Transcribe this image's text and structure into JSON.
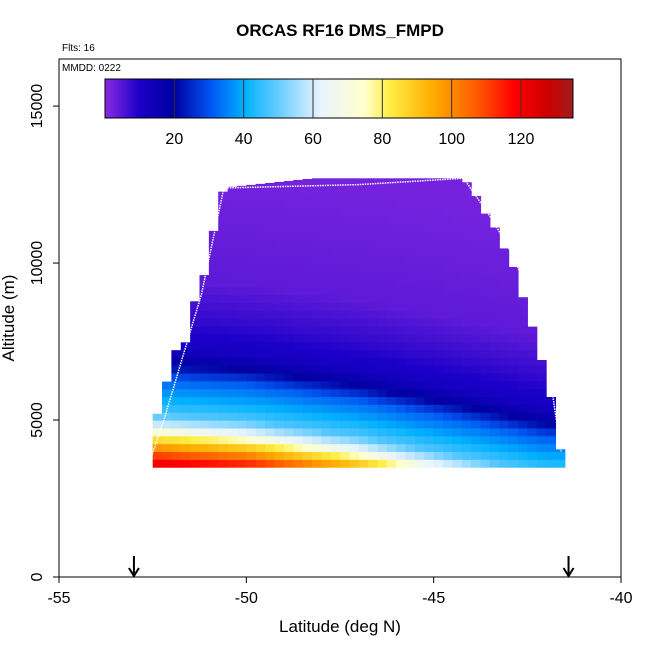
{
  "chart_data": {
    "type": "heatmap",
    "title": "ORCAS RF16 DMS_FMPD",
    "annotations": {
      "flights": "Flts: 16",
      "mmdd": "MMDD: 0222"
    },
    "xlabel": "Latitude (deg N)",
    "ylabel": "Altitude (m)",
    "xlim": [
      -55,
      -40
    ],
    "ylim": [
      0,
      16500
    ],
    "x_ticks": [
      -55,
      -50,
      -45,
      -40
    ],
    "x_tick_labels": [
      "-55",
      "-50",
      "-45",
      "-40"
    ],
    "y_ticks": [
      0,
      5000,
      10000,
      15000
    ],
    "y_tick_labels": [
      "0",
      "5000",
      "10000",
      "15000"
    ],
    "grid": false,
    "colorbar": {
      "range": [
        0,
        135
      ],
      "ticks": [
        20,
        40,
        60,
        80,
        100,
        120
      ],
      "tick_labels": [
        "20",
        "40",
        "60",
        "80",
        "100",
        "120"
      ],
      "stops": [
        {
          "v": 0,
          "color": "#8a2be2"
        },
        {
          "v": 10,
          "color": "#1a00c8"
        },
        {
          "v": 20,
          "color": "#0000a0"
        },
        {
          "v": 30,
          "color": "#0050f0"
        },
        {
          "v": 40,
          "color": "#00b0ff"
        },
        {
          "v": 50,
          "color": "#66ccff"
        },
        {
          "v": 62,
          "color": "#e8f4ff"
        },
        {
          "v": 75,
          "color": "#ffffcc"
        },
        {
          "v": 82,
          "color": "#ffee44"
        },
        {
          "v": 95,
          "color": "#ffaa00"
        },
        {
          "v": 108,
          "color": "#ff5500"
        },
        {
          "v": 118,
          "color": "#ff0000"
        },
        {
          "v": 128,
          "color": "#cc0000"
        },
        {
          "v": 135,
          "color": "#a01c1c"
        }
      ]
    },
    "field": {
      "lat_range": [
        -52.5,
        -41.6
      ],
      "alt_bottom": 3500,
      "top_boundary": [
        [
          -52.5,
          4700
        ],
        [
          -52.2,
          5900
        ],
        [
          -51.9,
          7200
        ],
        [
          -51.6,
          7500
        ],
        [
          -51.4,
          8700
        ],
        [
          -51.1,
          9700
        ],
        [
          -50.9,
          10900
        ],
        [
          -50.6,
          12400
        ],
        [
          -48.2,
          12700
        ],
        [
          -44.2,
          12700
        ],
        [
          -43.9,
          12200
        ],
        [
          -43.7,
          11700
        ],
        [
          -43.4,
          11200
        ],
        [
          -43.1,
          10400
        ],
        [
          -42.8,
          9700
        ],
        [
          -42.6,
          8800
        ],
        [
          -42.3,
          7700
        ],
        [
          -42.1,
          6800
        ],
        [
          -41.9,
          5900
        ],
        [
          -41.6,
          3900
        ]
      ],
      "value_profile": [
        [
          3500,
          125
        ],
        [
          3900,
          110
        ],
        [
          4200,
          95
        ],
        [
          4500,
          80
        ],
        [
          4800,
          62
        ],
        [
          5200,
          48
        ],
        [
          5700,
          40
        ],
        [
          6300,
          32
        ],
        [
          6800,
          20
        ],
        [
          7300,
          12
        ],
        [
          8200,
          8
        ],
        [
          9500,
          4
        ],
        [
          13000,
          2
        ]
      ],
      "band_descent": [
        [
          -52.5,
          0
        ],
        [
          -50,
          200
        ],
        [
          -47,
          700
        ],
        [
          -44,
          1400
        ],
        [
          -42,
          1900
        ]
      ]
    },
    "flight_track": [
      [
        -52.6,
        3600
      ],
      [
        -52.2,
        5000
      ],
      [
        -51.7,
        7000
      ],
      [
        -51.2,
        9000
      ],
      [
        -50.6,
        12400
      ],
      [
        -50.3,
        12400
      ],
      [
        -47,
        12500
      ],
      [
        -44.2,
        12700
      ],
      [
        -43.5,
        11500
      ],
      [
        -43,
        10500
      ],
      [
        -42.5,
        9200
      ],
      [
        -42,
        7200
      ],
      [
        -41.8,
        5600
      ],
      [
        -41.6,
        4000
      ]
    ],
    "arrows_at_lat": [
      -53,
      -41.4
    ]
  }
}
